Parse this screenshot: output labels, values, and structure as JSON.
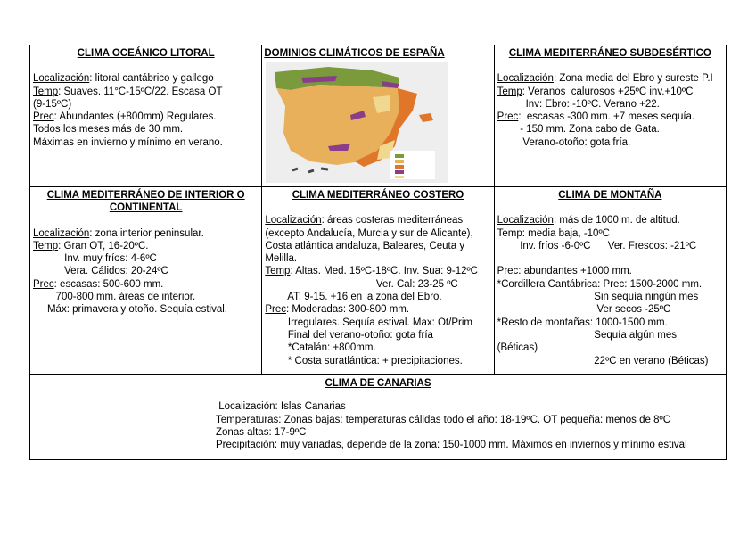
{
  "cells": {
    "oceanico": {
      "title": "CLIMA OCEÁNICO LITORAL",
      "lines": [
        [
          "Localización",
          ": litoral cantábrico y gallego"
        ],
        [
          "Temp",
          ": Suaves. 11°C-15ºC/22. Escasa OT"
        ],
        [
          "",
          "(9-15ºC)"
        ],
        [
          "Prec",
          ": Abundantes (+800mm) Regulares."
        ],
        [
          "",
          "Todos los meses más de 30 mm."
        ],
        [
          "",
          "Máximas en invierno y mínimo en verano."
        ]
      ]
    },
    "dominios": {
      "title": "DOMINIOS CLIMÁTICOS DE ESPAÑA",
      "map_colors": {
        "oceanic": "#7a9a3c",
        "continental": "#e8b05a",
        "mediterranean": "#e0762a",
        "mountain": "#8a3d8a",
        "subdesert": "#f0d890",
        "canarias": "#444444"
      }
    },
    "subdesertico": {
      "title": "CLIMA MEDITERRÁNEO SUBDESÉRTICO",
      "lines": [
        [
          "Localización",
          ": Zona media del Ebro y sureste P.I"
        ],
        [
          "Temp",
          ": Veranos  calurosos +25ºC inv.+10ºC"
        ],
        [
          "",
          "          Inv: Ebro: -10ºC. Verano +22."
        ],
        [
          "Prec",
          ":  escasas -300 mm. +7 meses sequía."
        ],
        [
          "",
          "        - 150 mm. Zona cabo de Gata."
        ],
        [
          "",
          "         Verano-otoño: gota fría."
        ]
      ]
    },
    "interior": {
      "title": "CLIMA MEDITERRÁNEO DE INTERIOR O CONTINENTAL",
      "lines": [
        [
          "Localización",
          ": zona interior peninsular."
        ],
        [
          "Temp",
          ": Gran OT, 16-20ºC."
        ],
        [
          "",
          "           Inv. muy fríos: 4-6ºC"
        ],
        [
          "",
          "           Vera. Cálidos: 20-24ºC"
        ],
        [
          "Prec",
          ": escasas: 500-600 mm."
        ],
        [
          "",
          "        700-800 mm. áreas de interior."
        ],
        [
          "",
          "     Máx: primavera y otoño. Sequía estival."
        ]
      ]
    },
    "costero": {
      "title": "CLIMA MEDITERRÁNEO COSTERO",
      "lines": [
        [
          "Localización",
          ": áreas costeras mediterráneas"
        ],
        [
          "",
          "(excepto Andalucía, Murcia y sur de Alicante),"
        ],
        [
          "",
          "Costa atlántica andaluza, Baleares, Ceuta y"
        ],
        [
          "",
          "Melilla."
        ],
        [
          "Temp",
          ": Altas. Med. 15ºC-18ºC. Inv. Sua: 9-12ºC"
        ],
        [
          "",
          "                                       Ver. Cal: 23-25 ºC"
        ],
        [
          "",
          "        AT: 9-15. +16 en la zona del Ebro."
        ],
        [
          "Prec",
          ": Moderadas: 300-800 mm."
        ],
        [
          "",
          "        Irregulares. Sequía estival. Max: Ot/Prim"
        ],
        [
          "",
          "        Final del verano-otoño: gota fría"
        ],
        [
          "",
          "        *Catalán: +800mm."
        ],
        [
          "",
          "        * Costa suratlántica: + precipitaciones."
        ]
      ]
    },
    "montana": {
      "title": "CLIMA DE MONTAÑA",
      "lines": [
        [
          "Localización",
          ": más de 1000 m. de altitud."
        ],
        [
          "",
          "Temp: media baja, -10ºC"
        ],
        [
          "",
          "        Inv. fríos -6-0ºC      Ver. Frescos: -21ºC"
        ],
        [
          "",
          ""
        ],
        [
          "",
          "Prec: abundantes +1000 mm."
        ],
        [
          "",
          "*Cordillera Cantábrica: Prec: 1500-2000 mm."
        ],
        [
          "",
          "                                  Sin sequía ningún mes"
        ],
        [
          "",
          "                                   Ver secos -25ºC"
        ],
        [
          "",
          "*Resto de montañas: 1000-1500 mm."
        ],
        [
          "",
          "                                  Sequía algún mes"
        ],
        [
          "",
          "(Béticas)"
        ],
        [
          "",
          "                                  22ºC en verano (Béticas)"
        ]
      ]
    },
    "canarias": {
      "title": "CLIMA DE CANARIAS",
      "lines": [
        " Localización: Islas Canarias",
        "Temperaturas: Zonas bajas: temperaturas cálidas todo el año: 18-19ºC. OT pequeña: menos de 8ºC",
        "Zonas altas: 17-9ºC",
        "Precipitación: muy variadas, depende de la zona: 150-1000 mm. Máximos en inviernos y mínimo estival"
      ]
    }
  }
}
